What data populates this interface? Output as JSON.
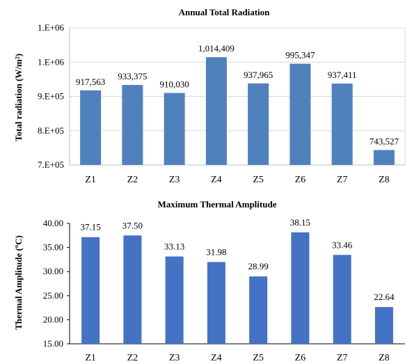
{
  "chart_data": [
    {
      "type": "bar",
      "title": "Annual Total Radiation",
      "xlabel": "",
      "ylabel": "Total radiation (W/m²)",
      "categories": [
        "Z1",
        "Z2",
        "Z3",
        "Z4",
        "Z5",
        "Z6",
        "Z7",
        "Z8"
      ],
      "values": [
        917563,
        933375,
        910030,
        1014409,
        937965,
        995347,
        937411,
        743527
      ],
      "data_labels": [
        "917,563",
        "933,375",
        "910,030",
        "1,014,409",
        "937,965",
        "995,347",
        "937,411",
        "743,527"
      ],
      "ylim": [
        700000,
        1100000
      ],
      "yticks": [
        700000,
        800000,
        900000,
        1000000,
        1100000
      ],
      "ytick_labels": [
        "7.E+05",
        "8.E+05",
        "9.E+05",
        "1.E+06",
        "1.E+06"
      ],
      "grid": true,
      "bar_color": "#4f81bd"
    },
    {
      "type": "bar",
      "title": "Maximum Thermal Amplitude",
      "xlabel": "",
      "ylabel": "Thermal Amplitude (ºC)",
      "categories": [
        "Z1",
        "Z2",
        "Z3",
        "Z4",
        "Z5",
        "Z6",
        "Z7",
        "Z8"
      ],
      "values": [
        37.15,
        37.5,
        33.13,
        31.98,
        28.99,
        38.15,
        33.46,
        22.64
      ],
      "data_labels": [
        "37.15",
        "37.50",
        "33.13",
        "31.98",
        "28.99",
        "38.15",
        "33.46",
        "22.64"
      ],
      "ylim": [
        15,
        40
      ],
      "yticks": [
        15,
        20,
        25,
        30,
        35,
        40
      ],
      "ytick_labels": [
        "15.00",
        "20.00",
        "25.00",
        "30.00",
        "35.00",
        "40.00"
      ],
      "grid": false,
      "bar_color": "#4472c4"
    }
  ]
}
